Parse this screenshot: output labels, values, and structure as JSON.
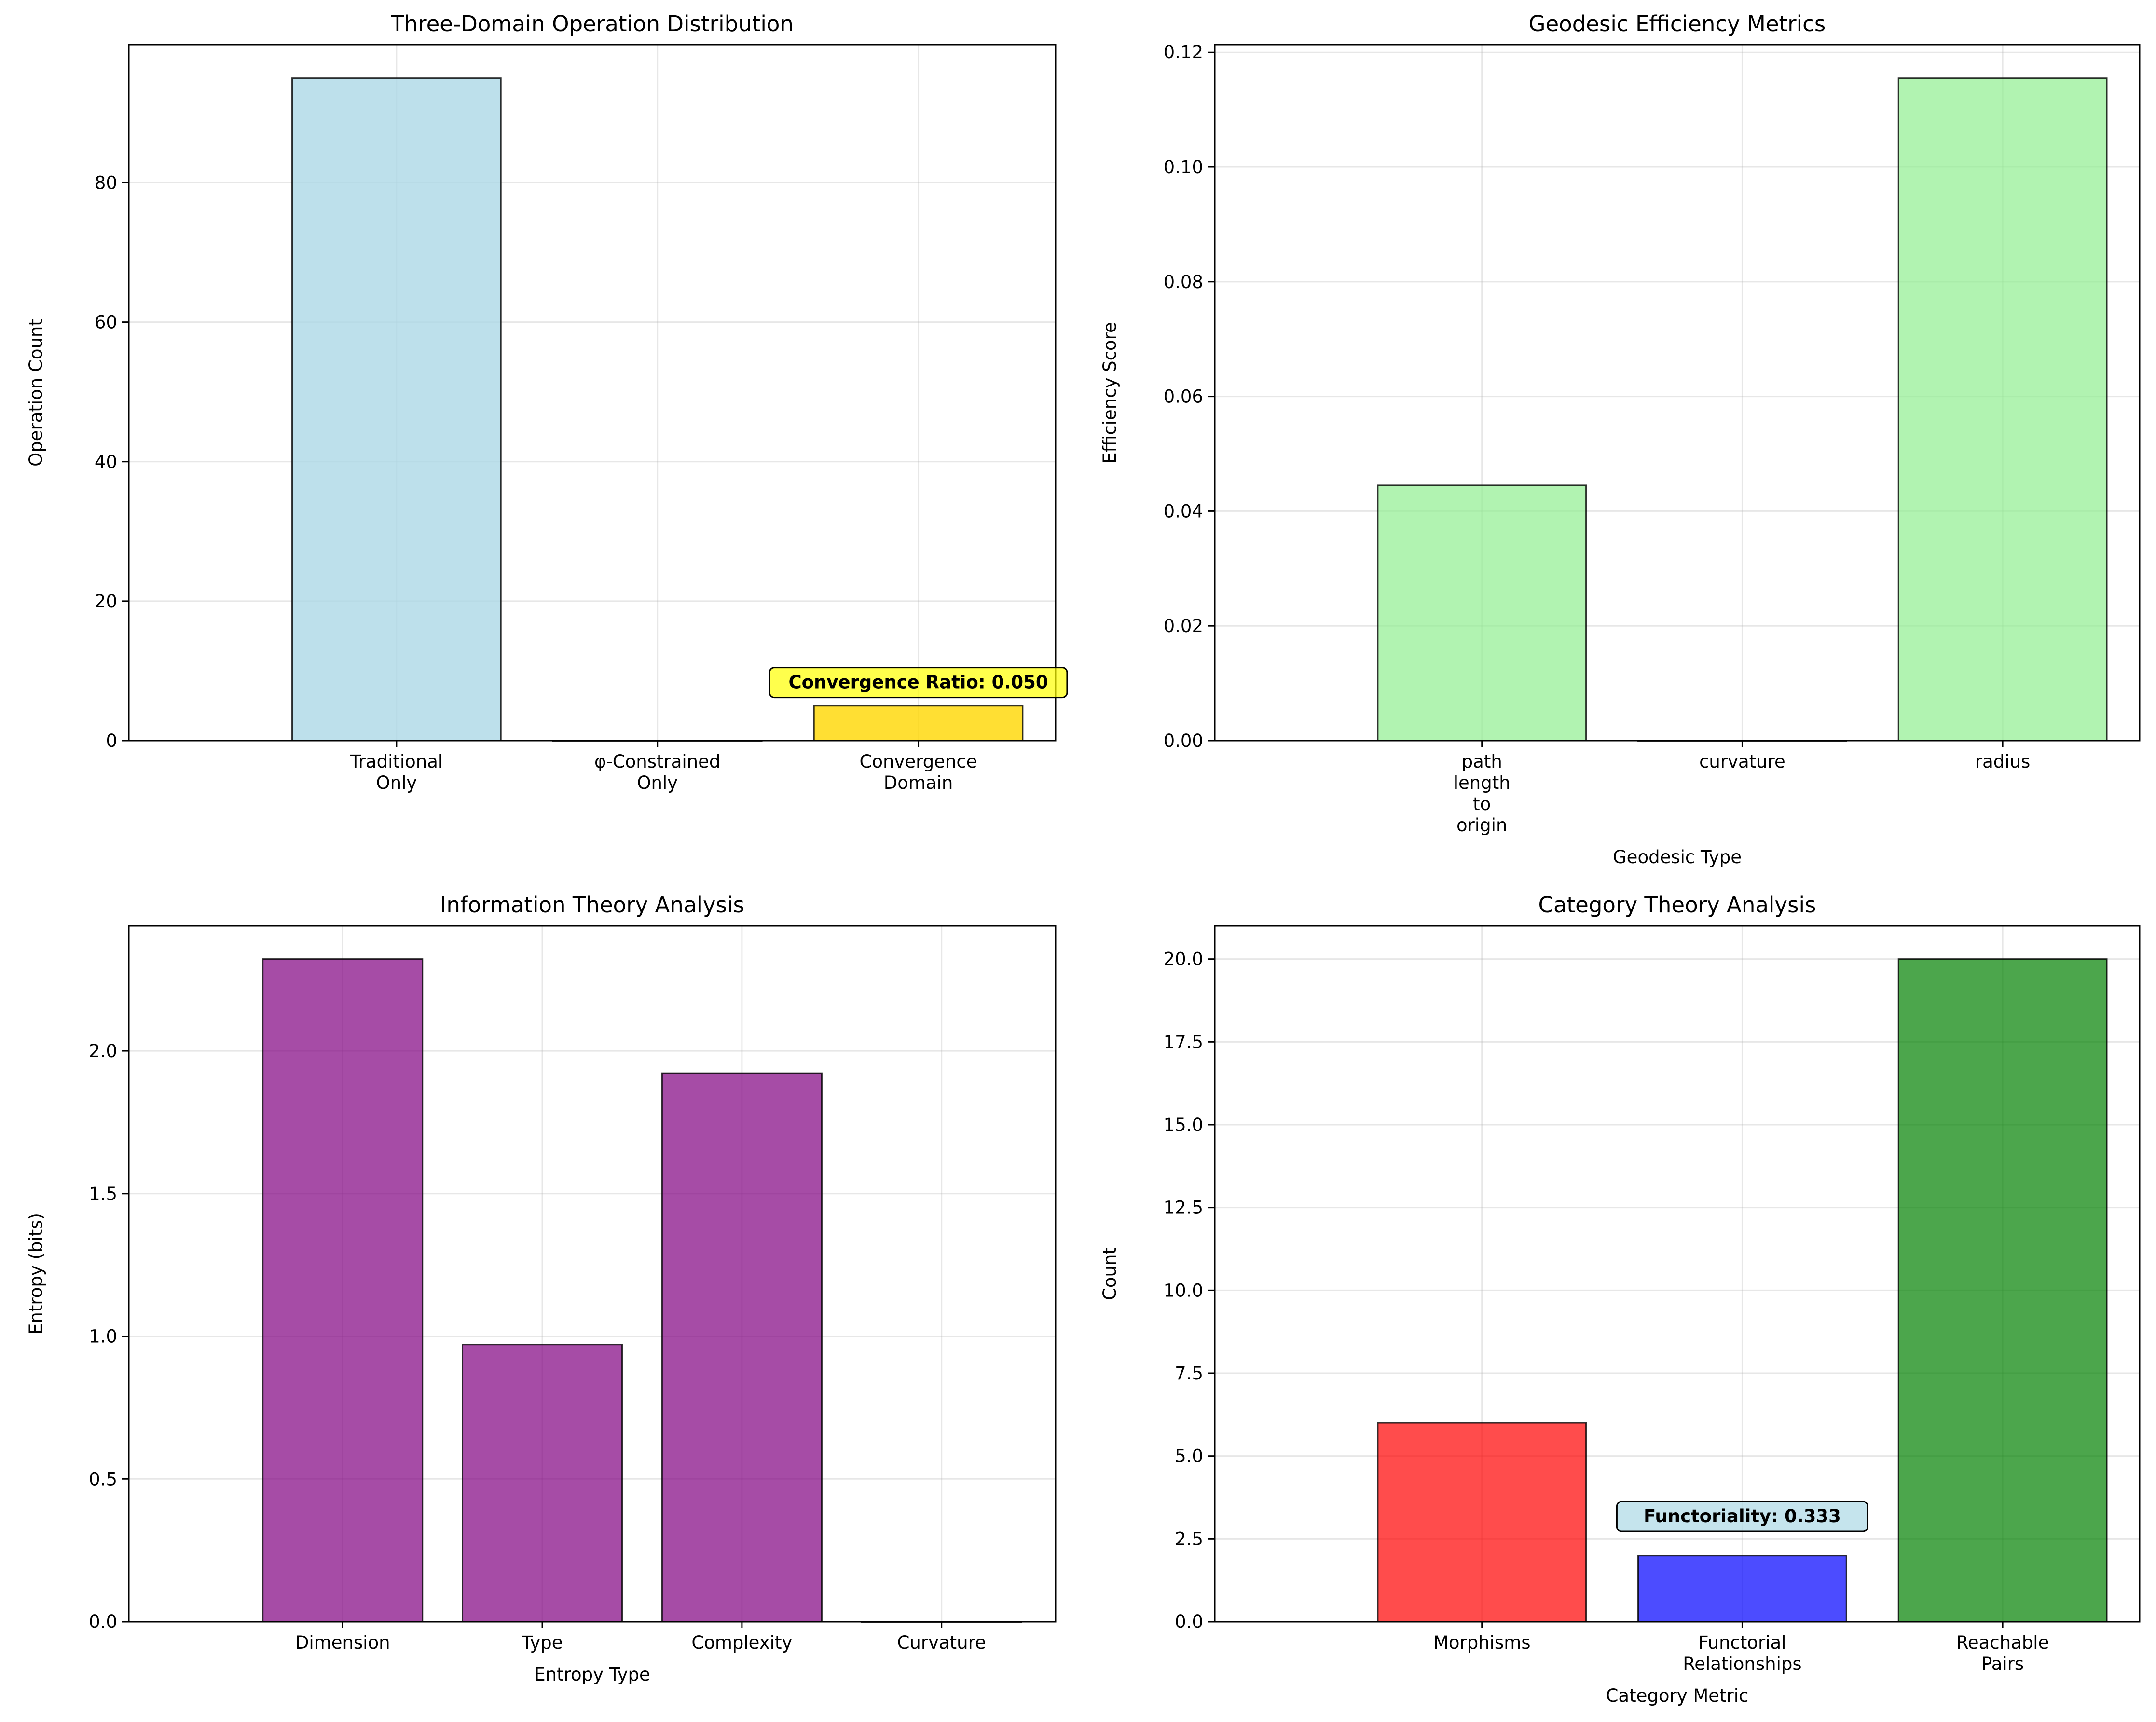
{
  "chart_data": [
    {
      "type": "bar",
      "title": "Three-Domain Operation Distribution",
      "xlabel": "",
      "ylabel": "Operation Count",
      "categories": [
        [
          "Traditional",
          "Only"
        ],
        [
          "φ-Constrained",
          "Only"
        ],
        [
          "Convergence",
          "Domain"
        ]
      ],
      "values": [
        95,
        0,
        5
      ],
      "colors": [
        "#add8e6",
        "#ffb6c1",
        "#ffd700"
      ],
      "bar_alpha": 0.8,
      "ylim": [
        0,
        99.75
      ],
      "yticks": [
        0,
        20,
        40,
        60,
        80
      ],
      "ytick_labels": [
        "0",
        "20",
        "40",
        "60",
        "80"
      ],
      "grid": true,
      "annotation": {
        "text": "Convergence Ratio: 0.050",
        "x_index": 2,
        "y": 7.5,
        "bg": "#ffff00",
        "alpha": 0.7
      }
    },
    {
      "type": "bar",
      "title": "Geodesic Efficiency Metrics",
      "xlabel": "Geodesic Type",
      "ylabel": "Efficiency Score",
      "categories": [
        [
          "path",
          "length",
          "to",
          "origin"
        ],
        [
          "curvature"
        ],
        [
          "radius"
        ]
      ],
      "values": [
        0.0445,
        0,
        0.1155
      ],
      "colors": [
        "#90ee90",
        "#90ee90",
        "#90ee90"
      ],
      "bar_alpha": 0.7,
      "ylim": [
        0,
        0.12128
      ],
      "yticks": [
        0,
        0.02,
        0.04,
        0.06,
        0.08,
        0.1,
        0.12
      ],
      "ytick_labels": [
        "0.00",
        "0.02",
        "0.04",
        "0.06",
        "0.08",
        "0.10",
        "0.12"
      ],
      "grid": true
    },
    {
      "type": "bar",
      "title": "Information Theory Analysis",
      "xlabel": "Entropy Type",
      "ylabel": "Entropy (bits)",
      "categories": [
        [
          "Dimension"
        ],
        [
          "Type"
        ],
        [
          "Complexity"
        ],
        [
          "Curvature"
        ]
      ],
      "values": [
        2.322,
        0.971,
        1.922,
        0
      ],
      "colors": [
        "#800080",
        "#800080",
        "#800080",
        "#800080"
      ],
      "bar_alpha": 0.7,
      "ylim": [
        0,
        2.438
      ],
      "yticks": [
        0,
        0.5,
        1,
        1.5,
        2
      ],
      "ytick_labels": [
        "0.0",
        "0.5",
        "1.0",
        "1.5",
        "2.0"
      ],
      "grid": true
    },
    {
      "type": "bar",
      "title": "Category Theory Analysis",
      "xlabel": "Category Metric",
      "ylabel": "Count",
      "categories": [
        [
          "Morphisms"
        ],
        [
          "Functorial",
          "Relationships"
        ],
        [
          "Reachable",
          "Pairs"
        ]
      ],
      "values": [
        6,
        2,
        20
      ],
      "colors": [
        "#ff0000",
        "#0000ff",
        "#008000"
      ],
      "bar_alpha": 0.7,
      "ylim": [
        0,
        21
      ],
      "yticks": [
        0,
        2.5,
        5,
        7.5,
        10,
        12.5,
        15,
        17.5,
        20
      ],
      "ytick_labels": [
        "0.0",
        "2.5",
        "5.0",
        "7.5",
        "10.0",
        "12.5",
        "15.0",
        "17.5",
        "20.0"
      ],
      "grid": true,
      "annotation": {
        "text": "Functoriality: 0.333",
        "x_index": 1,
        "y": 3.0,
        "bg": "#add8e6",
        "alpha": 0.7
      }
    }
  ]
}
